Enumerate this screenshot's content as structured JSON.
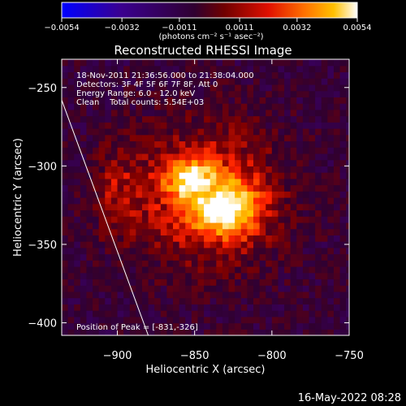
{
  "chart_data": {
    "type": "heatmap",
    "title": "Reconstructed RHESSI Image",
    "xlabel": "Heliocentric X (arcsec)",
    "ylabel": "Heliocentric Y (arcsec)",
    "xlim": [
      -936,
      -750
    ],
    "ylim": [
      -408,
      -232
    ],
    "x_ticks": [
      -900,
      -850,
      -800,
      -750
    ],
    "y_ticks": [
      -250,
      -300,
      -350,
      -400
    ],
    "x_tick_labels": [
      "−900",
      "−850",
      "−800",
      "−750"
    ],
    "y_tick_labels": [
      "−250",
      "−300",
      "−350",
      "−400"
    ],
    "colorbar": {
      "range": [
        -0.0054,
        0.0054
      ],
      "ticks": [
        -0.0054,
        -0.0032,
        -0.0011,
        0.0011,
        0.0032,
        0.0054
      ],
      "tick_labels": [
        "−0.0054",
        "−0.0032",
        "−0.0011",
        "0.0011",
        "0.0032",
        "0.0054"
      ],
      "units": "(photons cm⁻² s⁻¹ asec⁻²)",
      "colormap": [
        "#0000ff",
        "#400080",
        "#300030",
        "#800000",
        "#ff2000",
        "#ff8000",
        "#ffc000",
        "#ffffff"
      ]
    },
    "peak": {
      "x": -831,
      "y": -326,
      "value": 0.0054
    },
    "limb_line": {
      "points": [
        [
          -936,
          -258
        ],
        [
          -880,
          -408
        ]
      ]
    },
    "annotations": [
      "18-Nov-2011 21:36:56.000 to 21:38:04.000",
      "Detectors: 3F 4F 5F 6F 7F 8F, Att 0",
      "Energy Range: 6.0 - 12.0 keV",
      "Clean    Total counts: 5.54E+03"
    ],
    "peak_label": "Position of Peak = [-831,-326]"
  },
  "footer": {
    "timestamp": "16-May-2022 08:28"
  }
}
